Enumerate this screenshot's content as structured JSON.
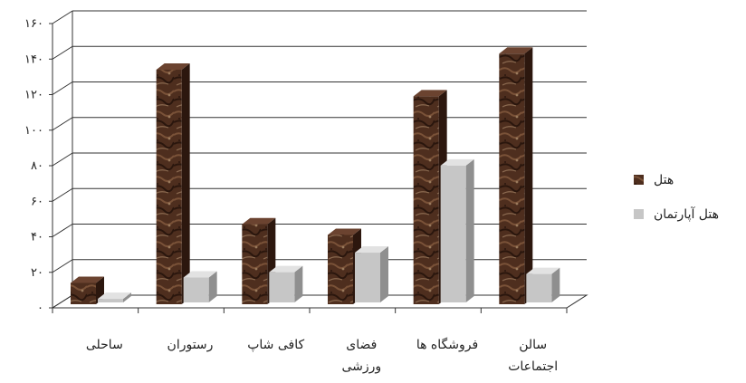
{
  "chart_data": {
    "type": "bar",
    "title": "",
    "xlabel": "",
    "ylabel": "",
    "ylim": [
      0,
      160
    ],
    "y_ticks": [
      "۰",
      "۲۰",
      "۴۰",
      "۶۰",
      "۸۰",
      "۱۰۰",
      "۱۲۰",
      "۱۴۰",
      "۱۶۰"
    ],
    "categories": [
      [
        "ساحلی"
      ],
      [
        "رستوران"
      ],
      [
        "کافی شاپ"
      ],
      [
        "فضای",
        "ورزشی"
      ],
      [
        "فروشگاه ها"
      ],
      [
        "سالن",
        "اجتماعات"
      ]
    ],
    "series": [
      {
        "name": "هتل",
        "values": [
          12,
          132,
          45,
          39,
          117,
          141
        ]
      },
      {
        "name": "هتل آپارتمان",
        "values": [
          2,
          14,
          17,
          28,
          77,
          16
        ]
      }
    ],
    "grid": true,
    "legend": "right",
    "colors": {
      "series1": "#4e2e1e",
      "series2": "#c6c6c6"
    }
  }
}
